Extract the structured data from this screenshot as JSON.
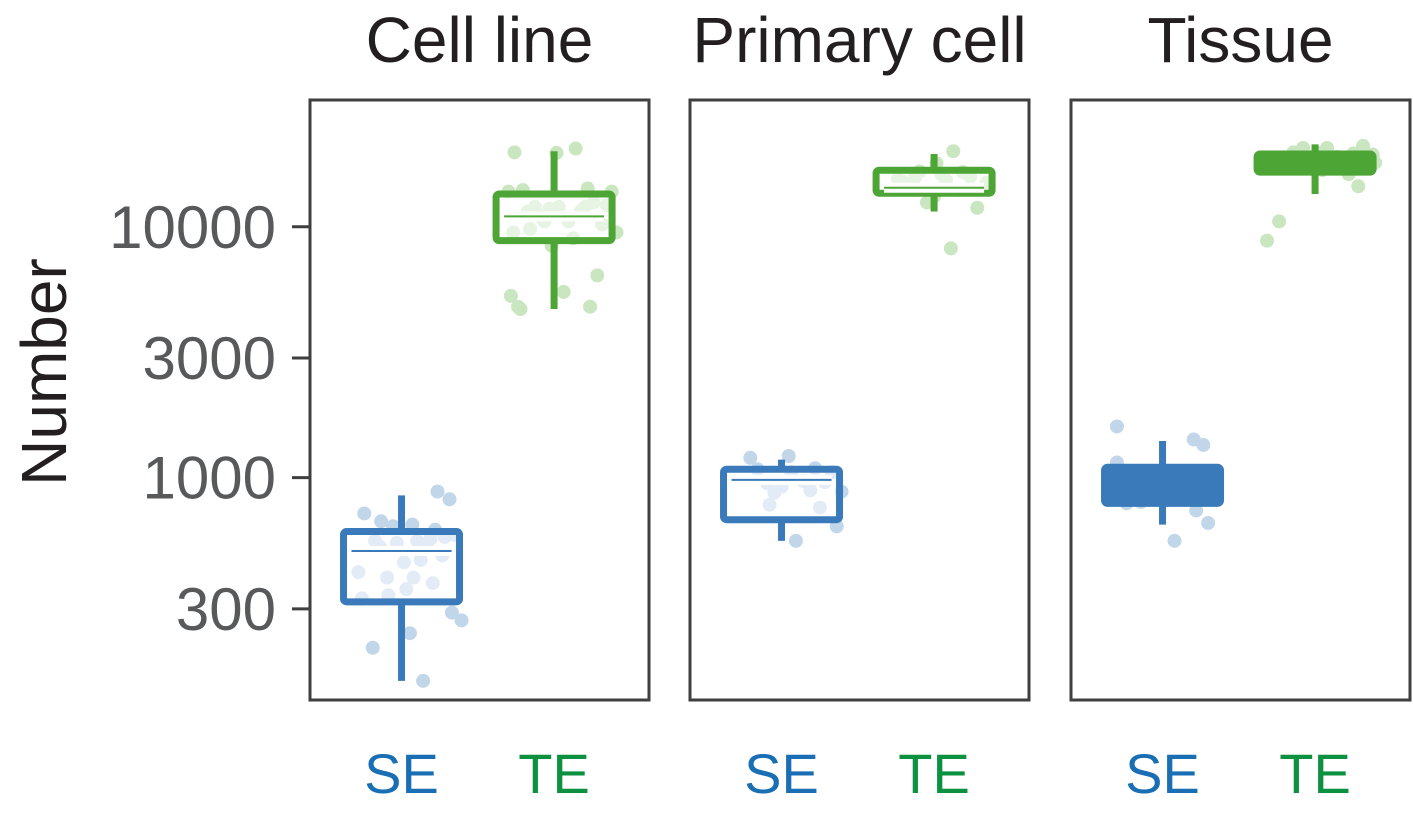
{
  "chart_data": {
    "type": "boxplot",
    "ylabel": "Number",
    "yscale": "log",
    "ylim": [
      130,
      32000
    ],
    "yticks": [
      {
        "value": 300,
        "label": "300"
      },
      {
        "value": 1000,
        "label": "1000"
      },
      {
        "value": 3000,
        "label": "3000"
      },
      {
        "value": 10000,
        "label": "10000"
      }
    ],
    "categories": [
      "SE",
      "TE"
    ],
    "category_colors": {
      "SE": "#3a7aba",
      "TE": "#4ca535"
    },
    "label_colors": {
      "SE": "#1a6fb4",
      "TE": "#0c9140"
    },
    "point_colors": {
      "SE": "#c2d6ea",
      "TE": "#c9e6c1"
    },
    "panels": [
      {
        "title": "Cell line",
        "groups": [
          {
            "category": "SE",
            "box": {
              "whisker_low": 155,
              "q1": 320,
              "median": 510,
              "q3": 610,
              "whisker_high": 850,
              "filled": false
            },
            "points": [
              [
                -0.36,
                420
              ],
              [
                -0.33,
                330
              ],
              [
                -0.31,
                720
              ],
              [
                -0.24,
                210
              ],
              [
                -0.22,
                560
              ],
              [
                -0.18,
                530
              ],
              [
                -0.17,
                670
              ],
              [
                -0.12,
                400
              ],
              [
                -0.11,
                340
              ],
              [
                -0.07,
                640
              ],
              [
                -0.04,
                550
              ],
              [
                0.02,
                460
              ],
              [
                0.04,
                360
              ],
              [
                0.07,
                240
              ],
              [
                0.09,
                650
              ],
              [
                0.1,
                400
              ],
              [
                0.13,
                560
              ],
              [
                0.16,
                470
              ],
              [
                0.18,
                155
              ],
              [
                0.21,
                540
              ],
              [
                0.24,
                570
              ],
              [
                0.26,
                380
              ],
              [
                0.28,
                620
              ],
              [
                0.3,
                880
              ],
              [
                0.34,
                490
              ],
              [
                0.36,
                580
              ],
              [
                0.4,
                820
              ],
              [
                0.42,
                290
              ],
              [
                0.45,
                590
              ],
              [
                0.5,
                270
              ]
            ]
          },
          {
            "category": "TE",
            "box": {
              "whisker_low": 4700,
              "q1": 8800,
              "median": 11000,
              "q3": 13500,
              "whisker_high": 20000,
              "filled": false
            },
            "points": [
              [
                -0.38,
                13800
              ],
              [
                -0.36,
                5300
              ],
              [
                -0.34,
                9500
              ],
              [
                -0.33,
                19800
              ],
              [
                -0.3,
                4800
              ],
              [
                -0.28,
                4700
              ],
              [
                -0.26,
                14000
              ],
              [
                -0.22,
                11500
              ],
              [
                -0.2,
                9800
              ],
              [
                -0.16,
                12000
              ],
              [
                -0.12,
                11000
              ],
              [
                -0.08,
                10500
              ],
              [
                -0.04,
                11800
              ],
              [
                -0.02,
                8400
              ],
              [
                0.02,
                19700
              ],
              [
                0.04,
                12000
              ],
              [
                0.08,
                5500
              ],
              [
                0.12,
                10500
              ],
              [
                0.16,
                9000
              ],
              [
                0.18,
                20500
              ],
              [
                0.22,
                11500
              ],
              [
                0.26,
                12000
              ],
              [
                0.28,
                14200
              ],
              [
                0.3,
                4800
              ],
              [
                0.33,
                12500
              ],
              [
                0.36,
                6400
              ],
              [
                0.4,
                10200
              ],
              [
                0.44,
                12200
              ],
              [
                0.48,
                13800
              ],
              [
                0.52,
                9500
              ]
            ]
          }
        ]
      },
      {
        "title": "Primary cell",
        "groups": [
          {
            "category": "SE",
            "box": {
              "whisker_low": 560,
              "q1": 680,
              "median": 980,
              "q3": 1080,
              "whisker_high": 1180,
              "filled": false
            },
            "points": [
              [
                -0.26,
                1200
              ],
              [
                -0.2,
                1080
              ],
              [
                -0.12,
                950
              ],
              [
                -0.06,
                870
              ],
              [
                0.0,
                920
              ],
              [
                -0.1,
                780
              ],
              [
                0.06,
                1220
              ],
              [
                0.08,
                1050
              ],
              [
                0.12,
                560
              ],
              [
                0.18,
                970
              ],
              [
                0.24,
                890
              ],
              [
                0.28,
                1090
              ],
              [
                0.32,
                760
              ],
              [
                0.36,
                960
              ],
              [
                0.42,
                1050
              ],
              [
                0.46,
                640
              ],
              [
                0.5,
                880
              ]
            ]
          },
          {
            "category": "TE",
            "box": {
              "whisker_low": 11500,
              "q1": 13600,
              "median": 14300,
              "q3": 16800,
              "whisker_high": 19500,
              "filled": false
            },
            "points": [
              [
                -0.3,
                15500
              ],
              [
                -0.26,
                15100
              ],
              [
                -0.22,
                14700
              ],
              [
                -0.16,
                15700
              ],
              [
                -0.12,
                16600
              ],
              [
                -0.06,
                12500
              ],
              [
                0.0,
                13200
              ],
              [
                0.02,
                17900
              ],
              [
                0.06,
                16200
              ],
              [
                0.1,
                15300
              ],
              [
                0.14,
                8200
              ],
              [
                0.16,
                20000
              ],
              [
                0.2,
                14000
              ],
              [
                0.24,
                16500
              ],
              [
                0.3,
                15800
              ],
              [
                0.36,
                11900
              ],
              [
                0.44,
                15000
              ]
            ]
          }
        ]
      },
      {
        "title": "Tissue",
        "groups": [
          {
            "category": "SE",
            "box": {
              "whisker_low": 650,
              "q1": 790,
              "median": 900,
              "q3": 1100,
              "whisker_high": 1400,
              "filled": true
            },
            "points": [
              [
                -0.38,
                1600
              ],
              [
                -0.38,
                1150
              ],
              [
                -0.34,
                950
              ],
              [
                -0.3,
                790
              ],
              [
                -0.27,
                1050
              ],
              [
                -0.22,
                980
              ],
              [
                -0.18,
                800
              ],
              [
                -0.14,
                860
              ],
              [
                -0.1,
                920
              ],
              [
                -0.05,
                820
              ],
              [
                0.0,
                1000
              ],
              [
                0.05,
                910
              ],
              [
                0.1,
                560
              ],
              [
                0.16,
                980
              ],
              [
                0.2,
                1050
              ],
              [
                0.26,
                1420
              ],
              [
                0.28,
                740
              ],
              [
                0.31,
                860
              ],
              [
                0.34,
                1350
              ],
              [
                0.38,
                660
              ]
            ]
          },
          {
            "category": "TE",
            "box": {
              "whisker_low": 13500,
              "q1": 16500,
              "median": 17500,
              "q3": 19500,
              "whisker_high": 21300,
              "filled": true
            },
            "points": [
              [
                -0.4,
                8800
              ],
              [
                -0.3,
                10500
              ],
              [
                -0.22,
                18800
              ],
              [
                -0.18,
                19800
              ],
              [
                -0.1,
                20600
              ],
              [
                -0.06,
                18200
              ],
              [
                0.02,
                19700
              ],
              [
                0.06,
                16800
              ],
              [
                0.1,
                20600
              ],
              [
                0.14,
                17900
              ],
              [
                0.18,
                19000
              ],
              [
                0.22,
                18300
              ],
              [
                0.28,
                16200
              ],
              [
                0.32,
                19600
              ],
              [
                0.36,
                14500
              ],
              [
                0.4,
                21000
              ],
              [
                0.44,
                18700
              ],
              [
                0.48,
                19400
              ],
              [
                0.5,
                18000
              ]
            ]
          }
        ]
      }
    ]
  }
}
